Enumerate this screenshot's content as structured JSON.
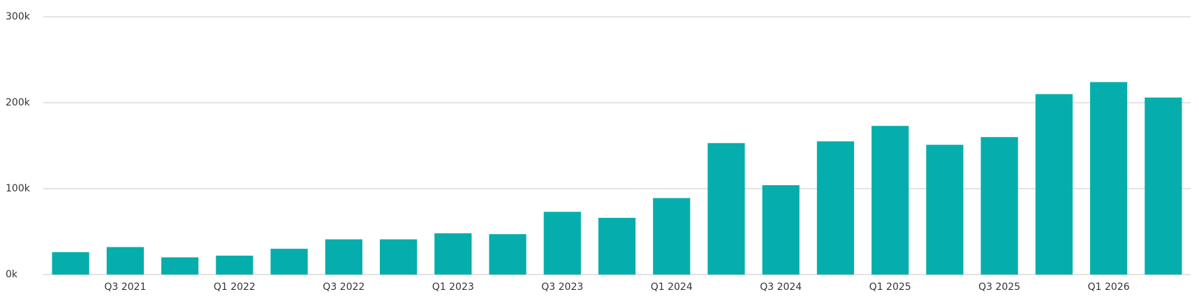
{
  "chart_data": {
    "type": "bar",
    "categories": [
      null,
      "Q3 2021",
      null,
      "Q1 2022",
      null,
      "Q3 2022",
      null,
      "Q1 2023",
      null,
      "Q3 2023",
      null,
      "Q1 2024",
      null,
      "Q3 2024",
      null,
      "Q1 2025",
      null,
      "Q3 2025",
      null,
      "Q1 2026",
      null
    ],
    "values": [
      26000,
      32000,
      20000,
      22000,
      30000,
      41000,
      41000,
      48000,
      47000,
      73000,
      66000,
      89000,
      153000,
      104000,
      155000,
      173000,
      151000,
      160000,
      210000,
      224000,
      206000
    ],
    "color": "#05aeac",
    "ylim": [
      0,
      300000
    ],
    "yticks": [
      {
        "value": 0,
        "label": "0k"
      },
      {
        "value": 100000,
        "label": "100k"
      },
      {
        "value": 200000,
        "label": "200k"
      },
      {
        "value": 300000,
        "label": "300k"
      }
    ],
    "grid": true
  }
}
